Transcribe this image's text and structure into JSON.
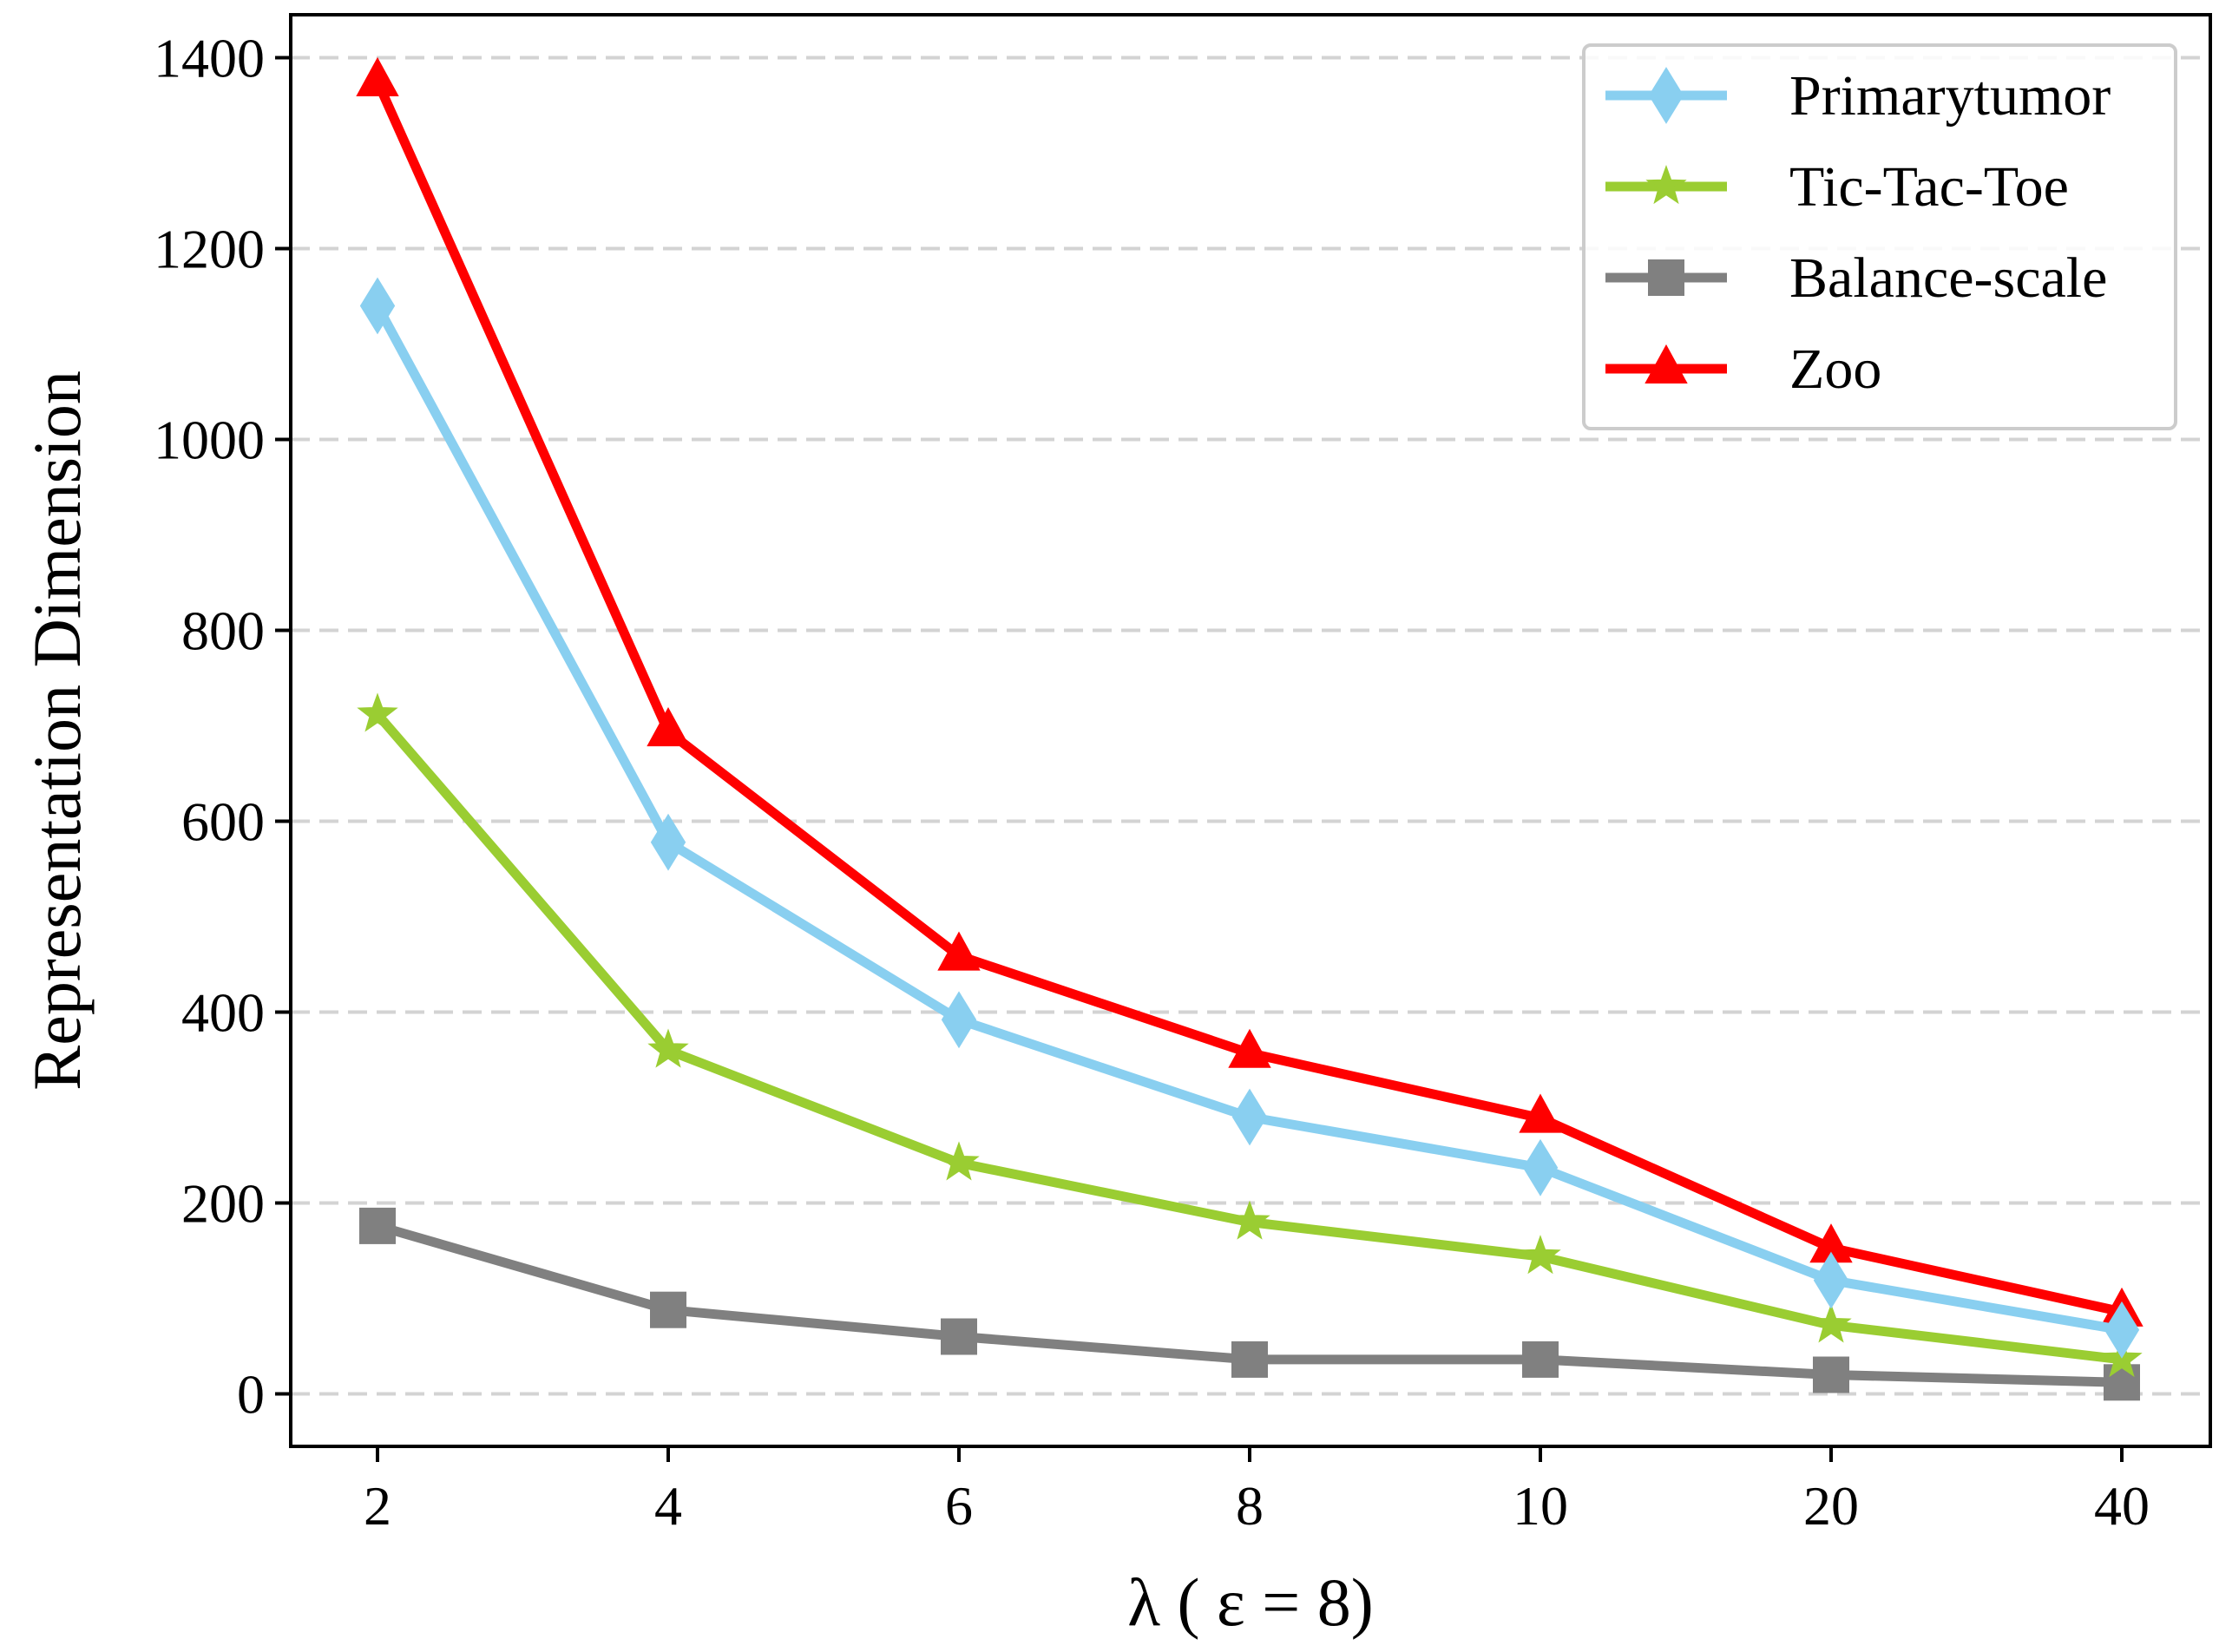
{
  "chart_data": {
    "type": "line",
    "title": "",
    "xlabel": "λ ( ε = 8)",
    "ylabel": "Representation Dimension",
    "categories": [
      "2",
      "4",
      "6",
      "8",
      "10",
      "20",
      "40"
    ],
    "yticks": [
      "0",
      "200",
      "400",
      "600",
      "800",
      "1000",
      "1200",
      "1400"
    ],
    "ylim": [
      -55,
      1445
    ],
    "grid": "horizontal dashed",
    "legend_position": "top-right",
    "series": [
      {
        "name": "Primarytumor",
        "color": "#89cff0",
        "marker": "diamond",
        "values": [
          1140,
          578,
          392,
          290,
          237,
          119,
          67
        ]
      },
      {
        "name": "Tic-Tac-Toe",
        "color": "#9acd32",
        "marker": "star",
        "values": [
          712,
          360,
          242,
          180,
          144,
          72,
          36
        ]
      },
      {
        "name": "Balance-scale",
        "color": "#808080",
        "marker": "square",
        "values": [
          176,
          88,
          60,
          36,
          36,
          20,
          12
        ]
      },
      {
        "name": "Zoo",
        "color": "#ff0000",
        "marker": "triangle",
        "values": [
          1375,
          694,
          459,
          357,
          289,
          153,
          86
        ]
      }
    ]
  }
}
